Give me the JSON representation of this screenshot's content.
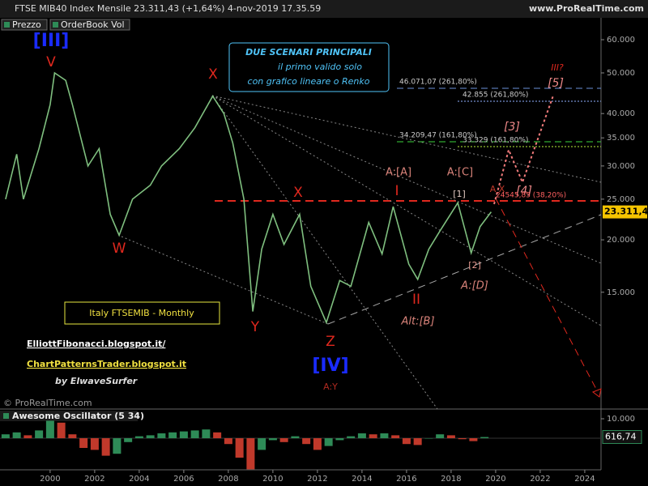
{
  "header": {
    "title": "FTSE MIB40 Index Mensile 23.311,43 (+1,64%) 4-nov-2019 17.35.59",
    "site": "www.ProRealTime.com",
    "buttons": [
      "Prezzo",
      "OrderBook Vol"
    ],
    "copyright": "© ProRealTime.com"
  },
  "chart_data": [
    {
      "type": "line",
      "log_scale": true,
      "x": [
        1998.0,
        1998.5,
        1998.8,
        1999.5,
        2000.0,
        2000.2,
        2000.7,
        2001.0,
        2001.7,
        2002.2,
        2002.7,
        2003.1,
        2003.7,
        2004.5,
        2005.0,
        2005.8,
        2006.5,
        2007.3,
        2007.8,
        2008.2,
        2008.7,
        2009.1,
        2009.5,
        2010.0,
        2010.5,
        2011.2,
        2011.7,
        2012.4,
        2013.0,
        2013.5,
        2014.3,
        2014.9,
        2015.4,
        2016.1,
        2016.5,
        2017.0,
        2017.5,
        2018.3,
        2018.9,
        2019.3,
        2019.8
      ],
      "series": [
        {
          "name": "Prezzo",
          "color": "#7fbf7f",
          "values": [
            25000,
            32000,
            25000,
            33000,
            42000,
            50000,
            48000,
            42000,
            30000,
            33000,
            23000,
            20500,
            25000,
            27000,
            30000,
            33000,
            37000,
            44000,
            40000,
            34000,
            25000,
            13500,
            19000,
            23000,
            19500,
            23000,
            15500,
            12700,
            16000,
            15500,
            22000,
            18500,
            24000,
            17500,
            16100,
            19000,
            21000,
            24500,
            18600,
            21500,
            23311.43
          ]
        }
      ],
      "last_price": {
        "value": 23311.43,
        "label": "23.311,43"
      },
      "xlim": [
        1997.75,
        2024.73
      ],
      "xticks": [
        2000,
        2002,
        2004,
        2006,
        2008,
        2010,
        2012,
        2014,
        2016,
        2018,
        2020,
        2022,
        2024
      ],
      "ylim": [
        7900,
        67650
      ],
      "yticks": [
        {
          "value": 60000,
          "label": "60.000"
        },
        {
          "value": 50000,
          "label": "50.000"
        },
        {
          "value": 40000,
          "label": "40.000"
        },
        {
          "value": 35000,
          "label": "35.000"
        },
        {
          "value": 30000,
          "label": "30.000"
        },
        {
          "value": 25000,
          "label": "25.000"
        },
        {
          "value": 20000,
          "label": "20.000"
        },
        {
          "value": 15000,
          "label": "15.000"
        }
      ],
      "annotations": [
        "[III]",
        "V",
        "X",
        "W",
        "Y",
        "X",
        "Z",
        "[IV]",
        "A:Y",
        "I",
        "II",
        "Alt:[B]",
        "A:[A]",
        "A:[C]",
        "[1]",
        "[2]",
        "A:[D]",
        "A X",
        "[3]",
        "[4]",
        "[5]",
        "III?",
        "46.071,07 (261,80%)",
        "42.855 (261,80%)",
        "34.209,47 (161,80%)",
        "33.329 (161,80%)",
        "24545,85 (38,20%)"
      ],
      "notes": [
        "DUE SCENARI PRINCIPALI",
        "il primo valido solo",
        "con grafico lineare o Renko",
        "Italy FTSEMIB - Monthly",
        "ElliottFibonacci.blogspot.it/",
        "ChartPatternsTrader.blogspot.it",
        "by ElwaveSurfer"
      ]
    },
    {
      "type": "bar",
      "title": "Awesome Oscillator (5 34)",
      "x": [
        1998.0,
        1998.5,
        1999.0,
        1999.5,
        2000.0,
        2000.5,
        2001.0,
        2001.5,
        2002.0,
        2002.5,
        2003.0,
        2003.5,
        2004.0,
        2004.5,
        2005.0,
        2005.5,
        2006.0,
        2006.5,
        2007.0,
        2007.5,
        2008.0,
        2008.5,
        2009.0,
        2009.5,
        2010.0,
        2010.5,
        2011.0,
        2011.5,
        2012.0,
        2012.5,
        2013.0,
        2013.5,
        2014.0,
        2014.5,
        2015.0,
        2015.5,
        2016.0,
        2016.5,
        2017.0,
        2017.5,
        2018.0,
        2018.5,
        2019.0,
        2019.5
      ],
      "values": [
        2000,
        3000,
        1500,
        4000,
        9000,
        8000,
        2000,
        -5000,
        -6000,
        -9000,
        -8000,
        -2000,
        1000,
        1500,
        2500,
        3000,
        3500,
        4000,
        4500,
        3000,
        -3000,
        -10000,
        -16000,
        -6000,
        -1000,
        -2000,
        1000,
        -3000,
        -6000,
        -4000,
        -1000,
        1000,
        2500,
        2000,
        2500,
        1500,
        -3000,
        -3500,
        0,
        2000,
        1500,
        -500,
        -1500,
        616.74
      ],
      "up_color": "#2e8b57",
      "down_color": "#c0392b",
      "last_value": {
        "value": 616.74,
        "label": "616,74"
      },
      "ylim": [
        -16250,
        15000
      ],
      "yticks": [
        {
          "value": 10000,
          "label": "10.000"
        }
      ]
    }
  ]
}
